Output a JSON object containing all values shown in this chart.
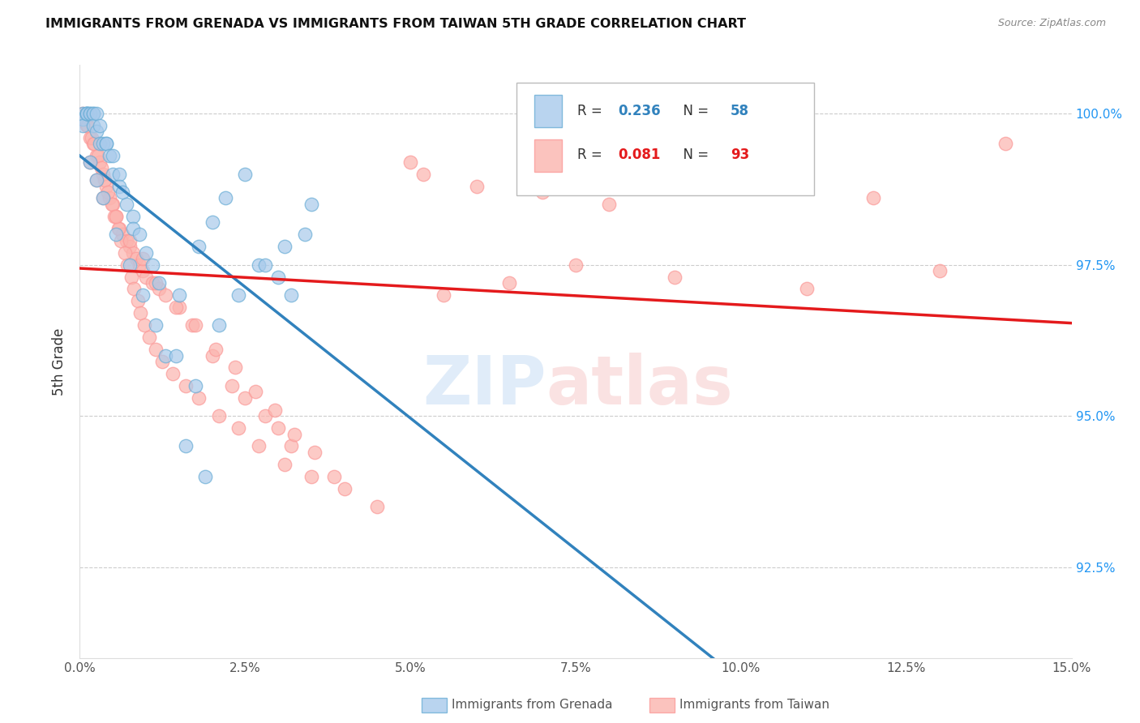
{
  "title": "IMMIGRANTS FROM GRENADA VS IMMIGRANTS FROM TAIWAN 5TH GRADE CORRELATION CHART",
  "source": "Source: ZipAtlas.com",
  "ylabel": "5th Grade",
  "xmin": 0.0,
  "xmax": 15.0,
  "ymin": 91.0,
  "ymax": 100.8,
  "grenada_color": "#a8caeb",
  "grenada_edge": "#6baed6",
  "taiwan_color": "#fbb4ae",
  "taiwan_edge": "#fb9a99",
  "grenada_line_color": "#3182bd",
  "taiwan_line_color": "#e41a1c",
  "grenada_R": "0.236",
  "grenada_N": "58",
  "taiwan_R": "0.081",
  "taiwan_N": "93",
  "ytick_positions": [
    92.5,
    95.0,
    97.5,
    100.0
  ],
  "ytick_labels": [
    "92.5%",
    "95.0%",
    "97.5%",
    "100.0%"
  ],
  "xtick_positions": [
    0.0,
    2.5,
    5.0,
    7.5,
    10.0,
    12.5,
    15.0
  ],
  "xtick_labels": [
    "0.0%",
    "2.5%",
    "5.0%",
    "7.5%",
    "10.0%",
    "12.5%",
    "15.0%"
  ],
  "grenada_x": [
    0.05,
    0.05,
    0.05,
    0.1,
    0.1,
    0.1,
    0.1,
    0.15,
    0.15,
    0.2,
    0.2,
    0.2,
    0.25,
    0.25,
    0.3,
    0.3,
    0.35,
    0.4,
    0.4,
    0.45,
    0.5,
    0.5,
    0.6,
    0.6,
    0.65,
    0.7,
    0.8,
    0.8,
    0.9,
    1.0,
    1.1,
    1.2,
    1.3,
    1.5,
    1.6,
    1.8,
    1.9,
    2.0,
    2.1,
    2.2,
    2.4,
    2.5,
    2.7,
    2.8,
    3.0,
    3.1,
    3.2,
    3.4,
    3.5,
    0.15,
    0.25,
    0.35,
    0.55,
    0.75,
    0.95,
    1.15,
    1.45,
    1.75
  ],
  "grenada_y": [
    100.0,
    99.9,
    99.8,
    100.0,
    100.0,
    100.0,
    100.0,
    100.0,
    100.0,
    100.0,
    100.0,
    99.8,
    100.0,
    99.7,
    99.8,
    99.5,
    99.5,
    99.5,
    99.5,
    99.3,
    99.3,
    99.0,
    99.0,
    98.8,
    98.7,
    98.5,
    98.3,
    98.1,
    98.0,
    97.7,
    97.5,
    97.2,
    96.0,
    97.0,
    94.5,
    97.8,
    94.0,
    98.2,
    96.5,
    98.6,
    97.0,
    99.0,
    97.5,
    97.5,
    97.3,
    97.8,
    97.0,
    98.0,
    98.5,
    99.2,
    98.9,
    98.6,
    98.0,
    97.5,
    97.0,
    96.5,
    96.0,
    95.5
  ],
  "taiwan_x": [
    0.1,
    0.15,
    0.2,
    0.25,
    0.3,
    0.35,
    0.4,
    0.45,
    0.5,
    0.55,
    0.6,
    0.65,
    0.7,
    0.75,
    0.8,
    0.85,
    0.9,
    0.95,
    1.0,
    1.1,
    1.2,
    1.3,
    1.5,
    1.7,
    2.0,
    2.3,
    2.5,
    2.8,
    3.0,
    3.2,
    5.0,
    5.2,
    6.0,
    7.0,
    8.0,
    10.0,
    12.0,
    0.05,
    0.08,
    0.12,
    0.18,
    0.22,
    0.28,
    0.32,
    0.38,
    0.42,
    0.48,
    0.52,
    0.58,
    0.62,
    0.68,
    0.72,
    0.78,
    0.82,
    0.88,
    0.92,
    0.98,
    1.05,
    1.15,
    1.25,
    1.4,
    1.6,
    1.8,
    2.1,
    2.4,
    2.7,
    3.1,
    3.5,
    4.0,
    4.5,
    5.5,
    6.5,
    7.5,
    9.0,
    11.0,
    13.0,
    14.0,
    0.15,
    0.25,
    0.35,
    0.55,
    0.75,
    0.95,
    1.15,
    1.45,
    1.75,
    2.05,
    2.35,
    2.65,
    2.95,
    3.25,
    3.55,
    3.85
  ],
  "taiwan_y": [
    99.8,
    99.6,
    99.5,
    99.3,
    99.2,
    99.0,
    98.8,
    98.6,
    98.5,
    98.3,
    98.1,
    98.0,
    97.9,
    97.8,
    97.7,
    97.6,
    97.5,
    97.4,
    97.3,
    97.2,
    97.1,
    97.0,
    96.8,
    96.5,
    96.0,
    95.5,
    95.3,
    95.0,
    94.8,
    94.5,
    99.2,
    99.0,
    98.8,
    98.7,
    98.5,
    98.8,
    98.6,
    100.0,
    99.9,
    99.8,
    99.6,
    99.5,
    99.3,
    99.1,
    98.9,
    98.7,
    98.5,
    98.3,
    98.1,
    97.9,
    97.7,
    97.5,
    97.3,
    97.1,
    96.9,
    96.7,
    96.5,
    96.3,
    96.1,
    95.9,
    95.7,
    95.5,
    95.3,
    95.0,
    94.8,
    94.5,
    94.2,
    94.0,
    93.8,
    93.5,
    97.0,
    97.2,
    97.5,
    97.3,
    97.1,
    97.4,
    99.5,
    99.2,
    98.9,
    98.6,
    98.3,
    97.9,
    97.6,
    97.2,
    96.8,
    96.5,
    96.1,
    95.8,
    95.4,
    95.1,
    94.7,
    94.4,
    94.0
  ]
}
